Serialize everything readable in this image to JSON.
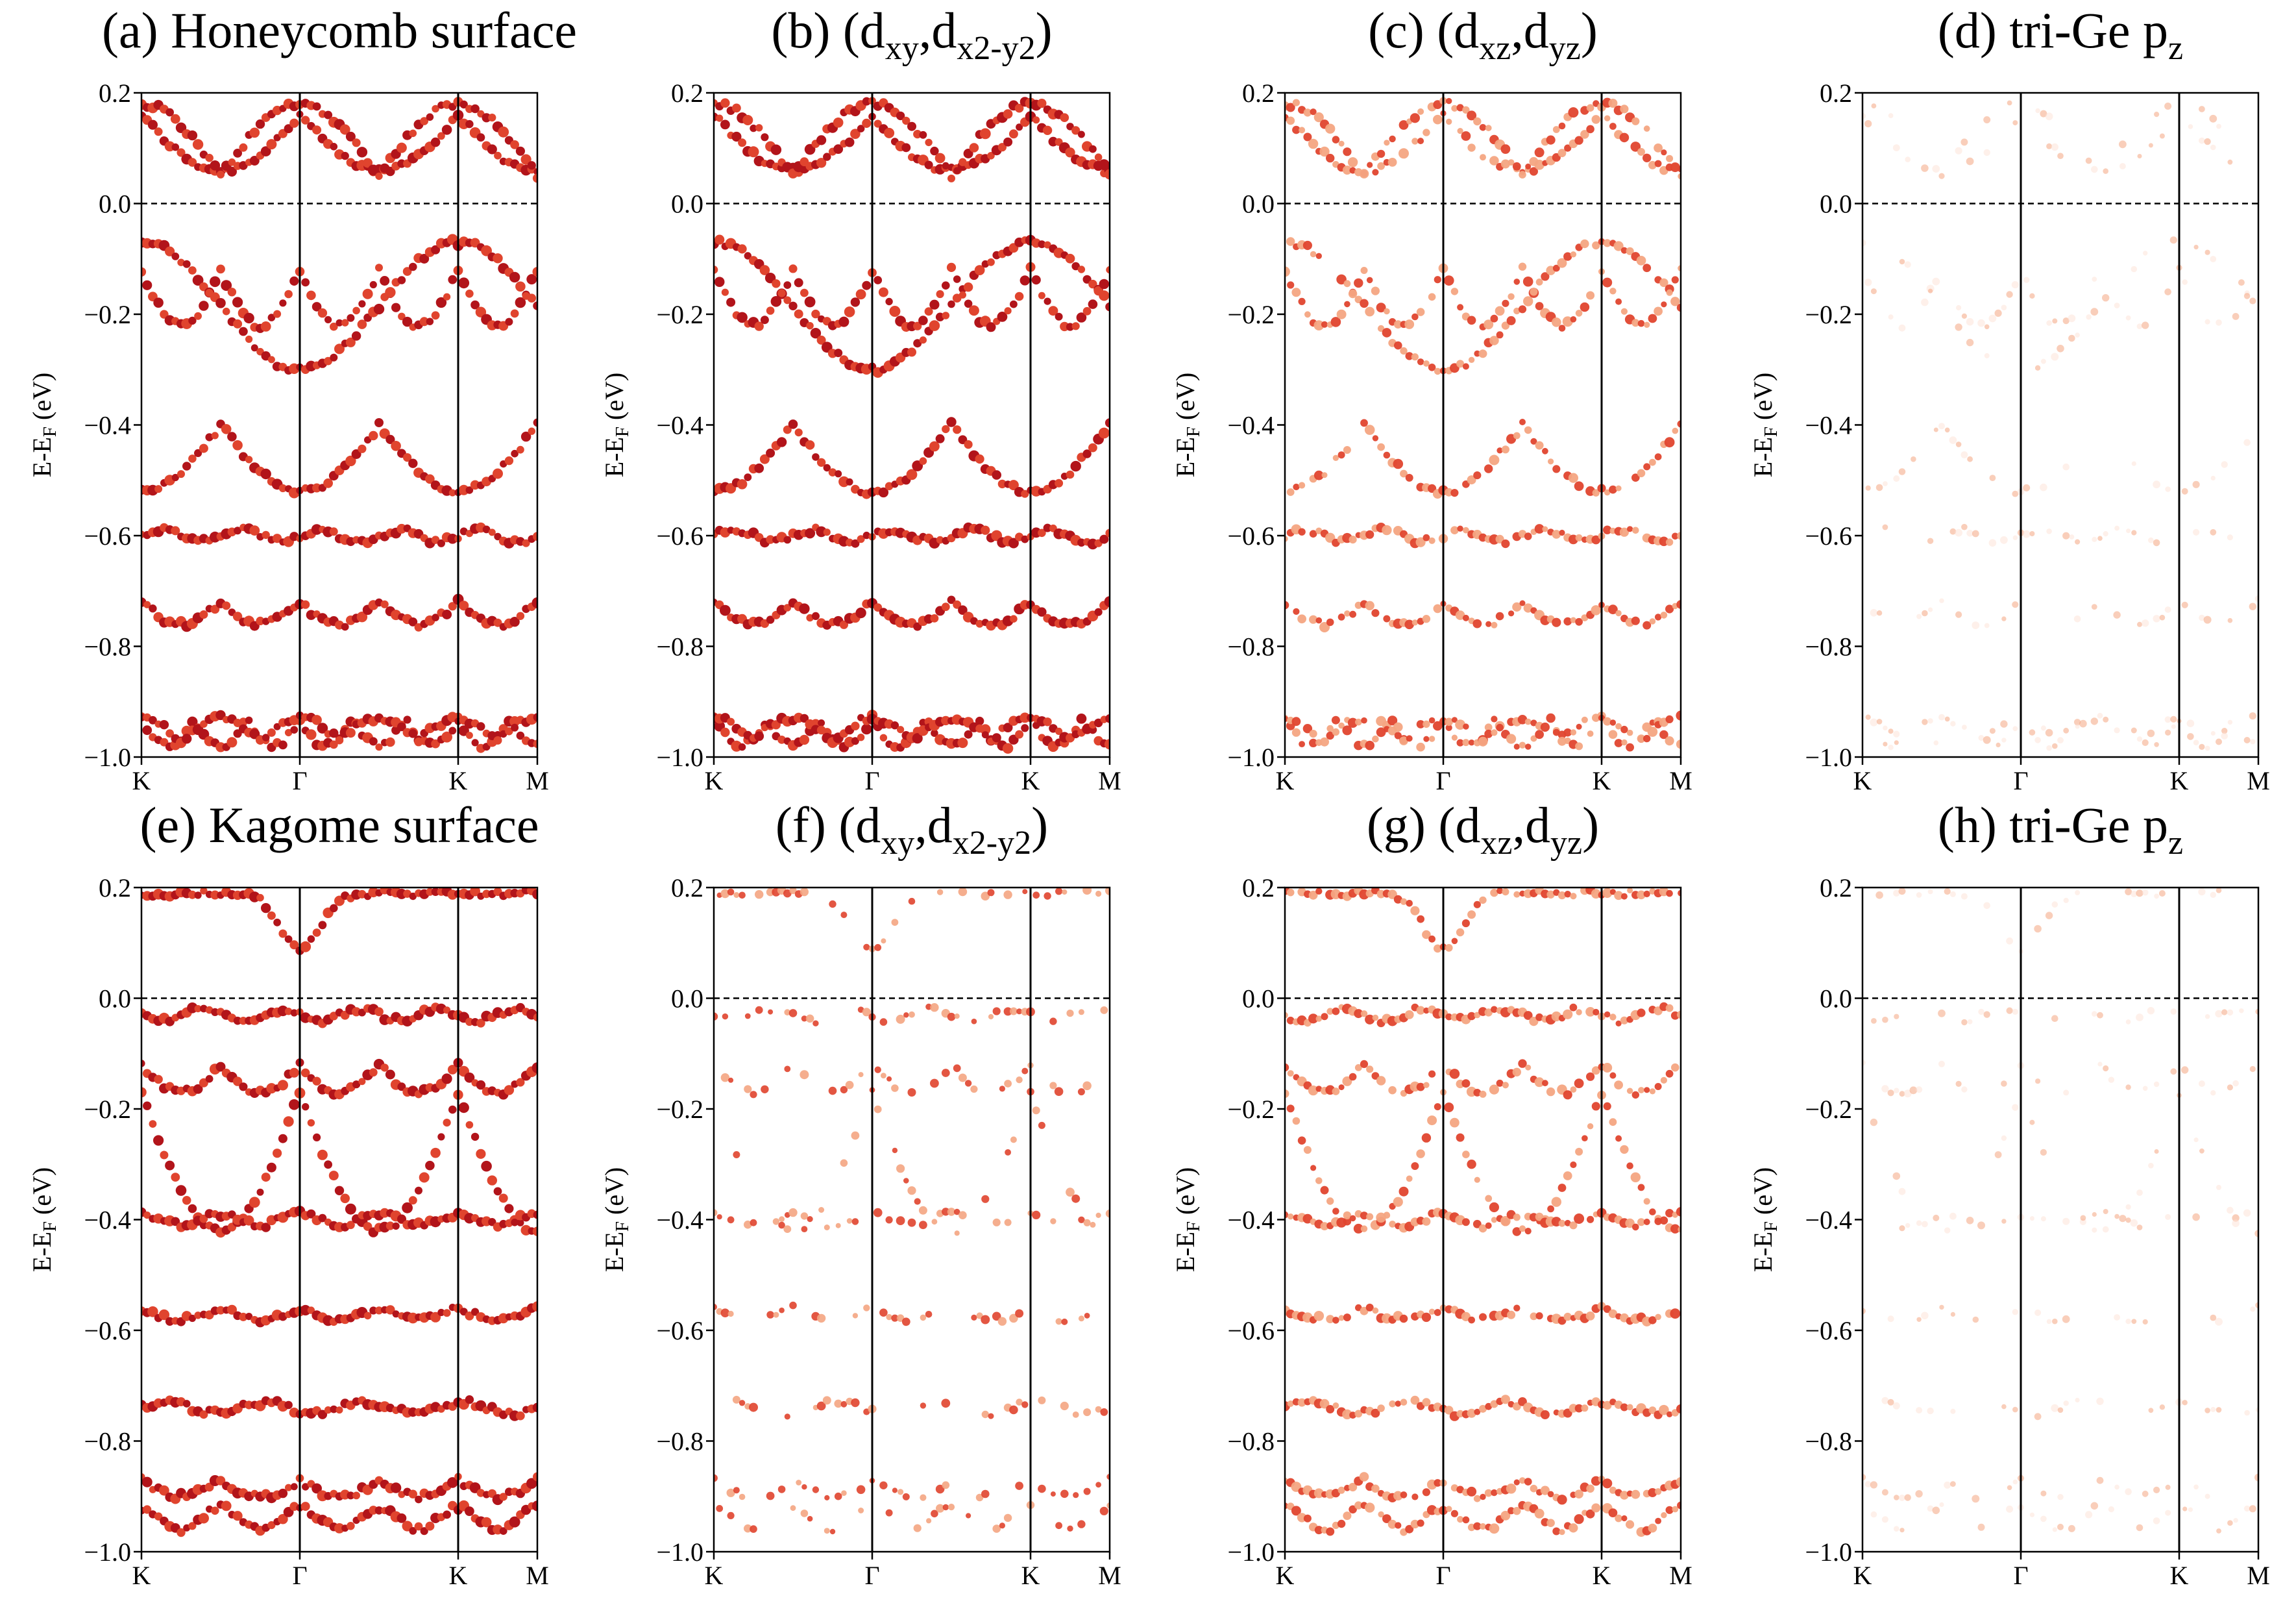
{
  "figure": {
    "ylabel_main": "E-E",
    "ylabel_sub": "F",
    "ylabel_unit": " (eV)",
    "yticks": [
      "0.2",
      "0.0",
      "−0.2",
      "−0.4",
      "−0.6",
      "−0.8",
      "−1.0"
    ],
    "kpoints": [
      "K",
      "Γ",
      "K",
      "M"
    ],
    "colors": {
      "dark": "#b2141a",
      "mid": "#e0442e",
      "light": "#f4a582",
      "faint": "#fde3d8"
    }
  },
  "chart_data": [
    {
      "type": "scatter",
      "panel": "a",
      "title_pre": "(a) Honeycomb surface",
      "title_sub1": "",
      "title_mid": "",
      "title_sub2": "",
      "title_post": "",
      "xlabel": "",
      "ylabel": "E-EF (eV)",
      "ylim": [
        -1.0,
        0.2
      ],
      "xticks": [
        "K",
        "Γ",
        "K",
        "M"
      ],
      "reference_line": {
        "y": 0.0,
        "style": "dashed"
      },
      "weight": "strong"
    },
    {
      "type": "scatter",
      "panel": "b",
      "title_pre": "(b) (d",
      "title_sub1": "xy",
      "title_mid": ",d",
      "title_sub2": "x2-y2",
      "title_post": ")",
      "xlabel": "",
      "ylabel": "E-EF (eV)",
      "ylim": [
        -1.0,
        0.2
      ],
      "xticks": [
        "K",
        "Γ",
        "K",
        "M"
      ],
      "reference_line": {
        "y": 0.0,
        "style": "dashed"
      },
      "weight": "strong"
    },
    {
      "type": "scatter",
      "panel": "c",
      "title_pre": "(c) (d",
      "title_sub1": "xz",
      "title_mid": ",d",
      "title_sub2": "yz",
      "title_post": ")",
      "xlabel": "",
      "ylabel": "E-EF (eV)",
      "ylim": [
        -1.0,
        0.2
      ],
      "xticks": [
        "K",
        "Γ",
        "K",
        "M"
      ],
      "reference_line": {
        "y": 0.0,
        "style": "dashed"
      },
      "weight": "medium"
    },
    {
      "type": "scatter",
      "panel": "d",
      "title_pre": "(d) tri-Ge p",
      "title_sub1": "z",
      "title_mid": "",
      "title_sub2": "",
      "title_post": "",
      "xlabel": "",
      "ylabel": "E-EF (eV)",
      "ylim": [
        -1.0,
        0.2
      ],
      "xticks": [
        "K",
        "Γ",
        "K",
        "M"
      ],
      "reference_line": {
        "y": 0.0,
        "style": "dashed"
      },
      "weight": "faint"
    },
    {
      "type": "scatter",
      "panel": "e",
      "title_pre": "(e) Kagome surface",
      "title_sub1": "",
      "title_mid": "",
      "title_sub2": "",
      "title_post": "",
      "xlabel": "",
      "ylabel": "E-EF (eV)",
      "ylim": [
        -1.0,
        0.2
      ],
      "xticks": [
        "K",
        "Γ",
        "K",
        "M"
      ],
      "reference_line": {
        "y": 0.0,
        "style": "dashed"
      },
      "weight": "strong"
    },
    {
      "type": "scatter",
      "panel": "f",
      "title_pre": "(f) (d",
      "title_sub1": "xy",
      "title_mid": ",d",
      "title_sub2": "x2-y2",
      "title_post": ")",
      "xlabel": "",
      "ylabel": "E-EF (eV)",
      "ylim": [
        -1.0,
        0.2
      ],
      "xticks": [
        "K",
        "Γ",
        "K",
        "M"
      ],
      "reference_line": {
        "y": 0.0,
        "style": "dashed"
      },
      "weight": "light"
    },
    {
      "type": "scatter",
      "panel": "g",
      "title_pre": "(g) (d",
      "title_sub1": "xz",
      "title_mid": ",d",
      "title_sub2": "yz",
      "title_post": ")",
      "xlabel": "",
      "ylabel": "E-EF (eV)",
      "ylim": [
        -1.0,
        0.2
      ],
      "xticks": [
        "K",
        "Γ",
        "K",
        "M"
      ],
      "reference_line": {
        "y": 0.0,
        "style": "dashed"
      },
      "weight": "medium"
    },
    {
      "type": "scatter",
      "panel": "h",
      "title_pre": "(h) tri-Ge p",
      "title_sub1": "z",
      "title_mid": "",
      "title_sub2": "",
      "title_post": "",
      "xlabel": "",
      "ylabel": "E-EF (eV)",
      "ylim": [
        -1.0,
        0.2
      ],
      "xticks": [
        "K",
        "Γ",
        "K",
        "M"
      ],
      "reference_line": {
        "y": 0.0,
        "style": "dashed"
      },
      "weight": "faint"
    }
  ]
}
